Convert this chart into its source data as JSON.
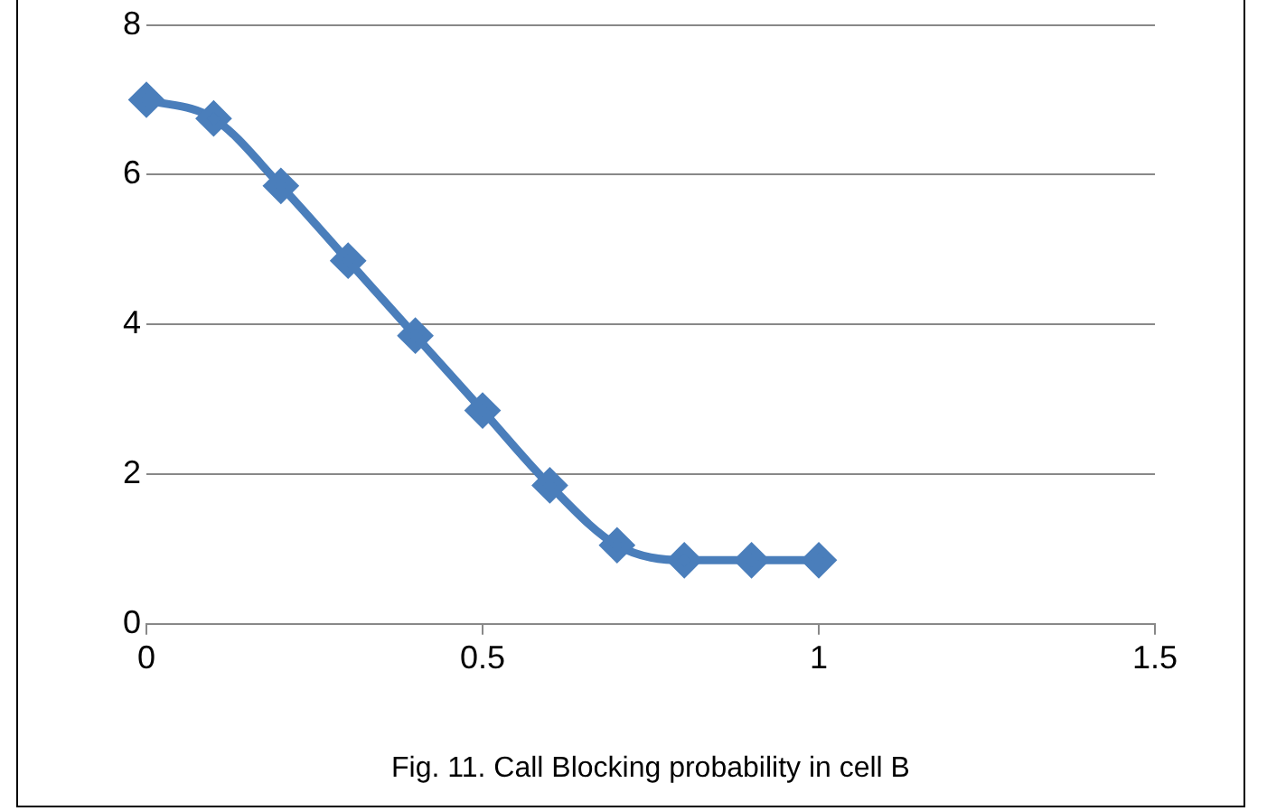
{
  "chart_data": {
    "type": "line",
    "x": [
      0,
      0.1,
      0.2,
      0.3,
      0.4,
      0.5,
      0.6,
      0.7,
      0.8,
      0.9,
      1
    ],
    "series": [
      {
        "color": "#4a7ebb",
        "values": [
          7,
          6.75,
          5.85,
          4.85,
          3.85,
          2.85,
          1.85,
          1.05,
          0.85,
          0.85,
          0.85
        ]
      }
    ],
    "xlim": [
      0,
      1.5
    ],
    "xticks": [
      0,
      0.5,
      1,
      1.5
    ],
    "ylim": [
      0,
      8
    ],
    "yticks": [
      0,
      2,
      4,
      6,
      8
    ],
    "grid": "y",
    "legend": false,
    "marker": "diamond",
    "line_style": "solid",
    "annotations": [
      "Fig. 11. Call Blocking probability in cell B"
    ]
  }
}
